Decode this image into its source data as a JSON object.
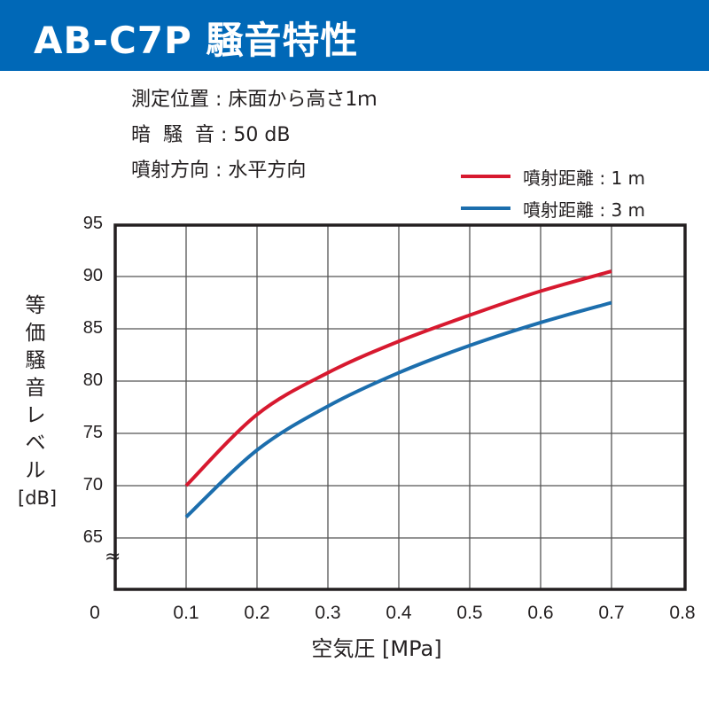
{
  "header": {
    "title": "AB-C7P 騒音特性",
    "bg_color": "#0068b7"
  },
  "conditions": [
    {
      "label": "測定位置",
      "value": "床面から高さ1ｍ"
    },
    {
      "label": "暗 騒 音",
      "value": "50 dB"
    },
    {
      "label": "噴射方向",
      "value": "水平方向"
    }
  ],
  "conditions_text": [
    "測定位置 : 床面から高さ1ｍ",
    "暗  騒  音 : 50 dB",
    "噴射方向 : 水平方向"
  ],
  "legend": [
    {
      "label": "噴射距離 : 1 m",
      "color": "#d7192f"
    },
    {
      "label": "噴射距離 : 3 m",
      "color": "#1c6ead"
    }
  ],
  "axes": {
    "ylabel": "等価騒音レベル[dB]",
    "ylabel_chars": [
      "等",
      "価",
      "騒",
      "音",
      "レ",
      "ベ",
      "ル",
      "[dB]"
    ],
    "xlabel": "空気圧 [MPa]",
    "yticks": [
      "95",
      "90",
      "85",
      "80",
      "75",
      "70",
      "65"
    ],
    "xticks": [
      "0",
      "0.1",
      "0.2",
      "0.3",
      "0.4",
      "0.5",
      "0.6",
      "0.7",
      "0.8"
    ],
    "break_symbol": "≈"
  },
  "chart_data": {
    "type": "line",
    "title": "AB-C7P 騒音特性",
    "xlabel": "空気圧 [MPa]",
    "ylabel": "等価騒音レベル [dB]",
    "x": [
      0.1,
      0.2,
      0.3,
      0.4,
      0.5,
      0.6,
      0.7
    ],
    "series": [
      {
        "name": "噴射距離 : 1 m",
        "color": "#d7192f",
        "values": [
          70.0,
          76.8,
          80.8,
          83.8,
          86.3,
          88.6,
          90.5
        ]
      },
      {
        "name": "噴射距離 : 3 m",
        "color": "#1c6ead",
        "values": [
          67.0,
          73.4,
          77.6,
          80.8,
          83.4,
          85.6,
          87.5
        ]
      }
    ],
    "xlim": [
      0,
      0.8
    ],
    "ylim": [
      60,
      95
    ],
    "y_axis_break": true,
    "grid": true,
    "legend_position": "top-right",
    "notes": [
      "測定位置 : 床面から高さ1ｍ",
      "暗騒音 : 50 dB",
      "噴射方向 : 水平方向"
    ]
  }
}
